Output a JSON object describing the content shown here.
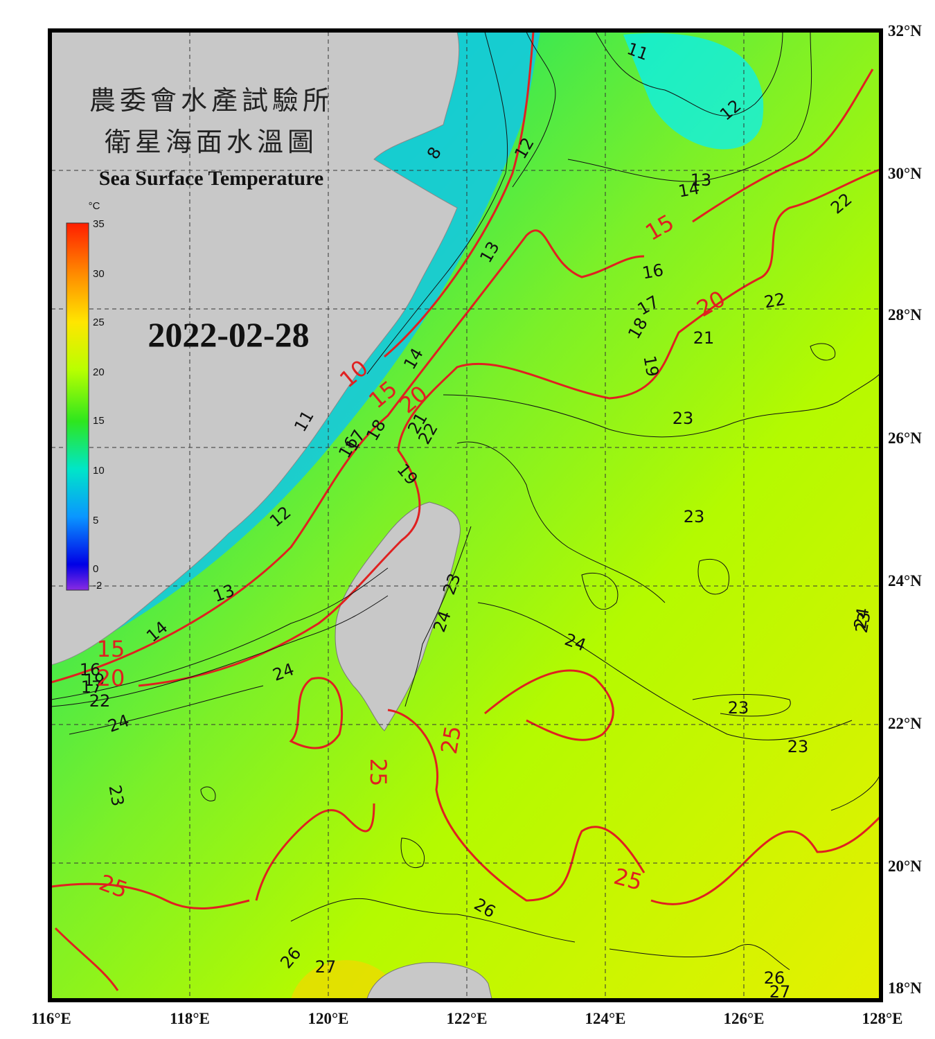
{
  "header": {
    "title_cn_1": "農委會水產試驗所",
    "title_cn_2": "衛星海面水溫圖",
    "title_en": "Sea Surface Temperature",
    "date": "2022-02-28"
  },
  "colorbar": {
    "unit": "°C",
    "ticks": [
      "35",
      "30",
      "25",
      "20",
      "15",
      "10",
      "5",
      "0",
      "-2"
    ],
    "stops": [
      "#ff1e00",
      "#ff8c00",
      "#ffe600",
      "#b9ff00",
      "#2ee61e",
      "#00e6c8",
      "#0a96ff",
      "#0000e6",
      "#6a00d0",
      "#8a2be2"
    ]
  },
  "axes": {
    "lon_labels": [
      "116°E",
      "118°E",
      "120°E",
      "122°E",
      "124°E",
      "126°E",
      "128°E"
    ],
    "lat_labels": [
      "32°N",
      "30°N",
      "28°N",
      "26°N",
      "24°N",
      "22°N",
      "20°N",
      "18°N"
    ]
  },
  "contour_labels_black": [
    "11",
    "12",
    "8",
    "12",
    "13",
    "14",
    "13",
    "16",
    "17",
    "18",
    "19",
    "21",
    "22",
    "22",
    "14",
    "11",
    "16",
    "17",
    "18",
    "21",
    "22",
    "19",
    "12",
    "13",
    "14",
    "23",
    "23",
    "23",
    "24",
    "24",
    "23",
    "23",
    "24",
    "23",
    "24",
    "26",
    "26",
    "27",
    "26",
    "27",
    "22",
    "19",
    "16",
    "17",
    "23",
    "24"
  ],
  "contour_labels_red": [
    "15",
    "20",
    "10",
    "15",
    "20",
    "15",
    "20",
    "25",
    "25",
    "25",
    "25"
  ],
  "colors": {
    "land": "#c8c8c8",
    "frame": "#000000",
    "contour_major": "#e02020",
    "contour_minor": "#111111"
  }
}
